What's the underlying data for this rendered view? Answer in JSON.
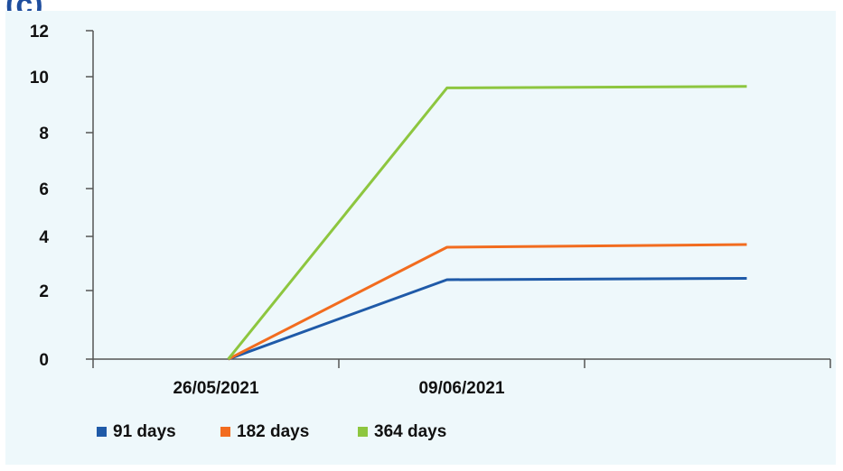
{
  "page": {
    "label_fragment": "(c)"
  },
  "colors": {
    "panel_background": "#eef8fb",
    "axis": "#555555"
  },
  "chart_data": {
    "type": "line",
    "title": "",
    "xlabel": "",
    "ylabel": "",
    "categories": [
      "",
      "26/05/2021",
      "09/06/2021",
      ""
    ],
    "ylim": [
      0,
      12
    ],
    "yticks": [
      0,
      2,
      4,
      6,
      8,
      10,
      12
    ],
    "grid": false,
    "legend_position": "bottom-left",
    "series": [
      {
        "name": "91 days",
        "color": "#1f5aa8",
        "points": [
          [
            0.0,
            0.0
          ],
          [
            0.5,
            2.4
          ],
          [
            1.0,
            2.45
          ]
        ]
      },
      {
        "name": "182 days",
        "color": "#f26c1f",
        "points": [
          [
            0.0,
            0.0
          ],
          [
            0.5,
            3.6
          ],
          [
            1.0,
            3.7
          ]
        ]
      },
      {
        "name": "364 days",
        "color": "#8dc63f",
        "points": [
          [
            0.0,
            0.0
          ],
          [
            0.5,
            9.6
          ],
          [
            1.0,
            9.65
          ]
        ]
      }
    ]
  }
}
